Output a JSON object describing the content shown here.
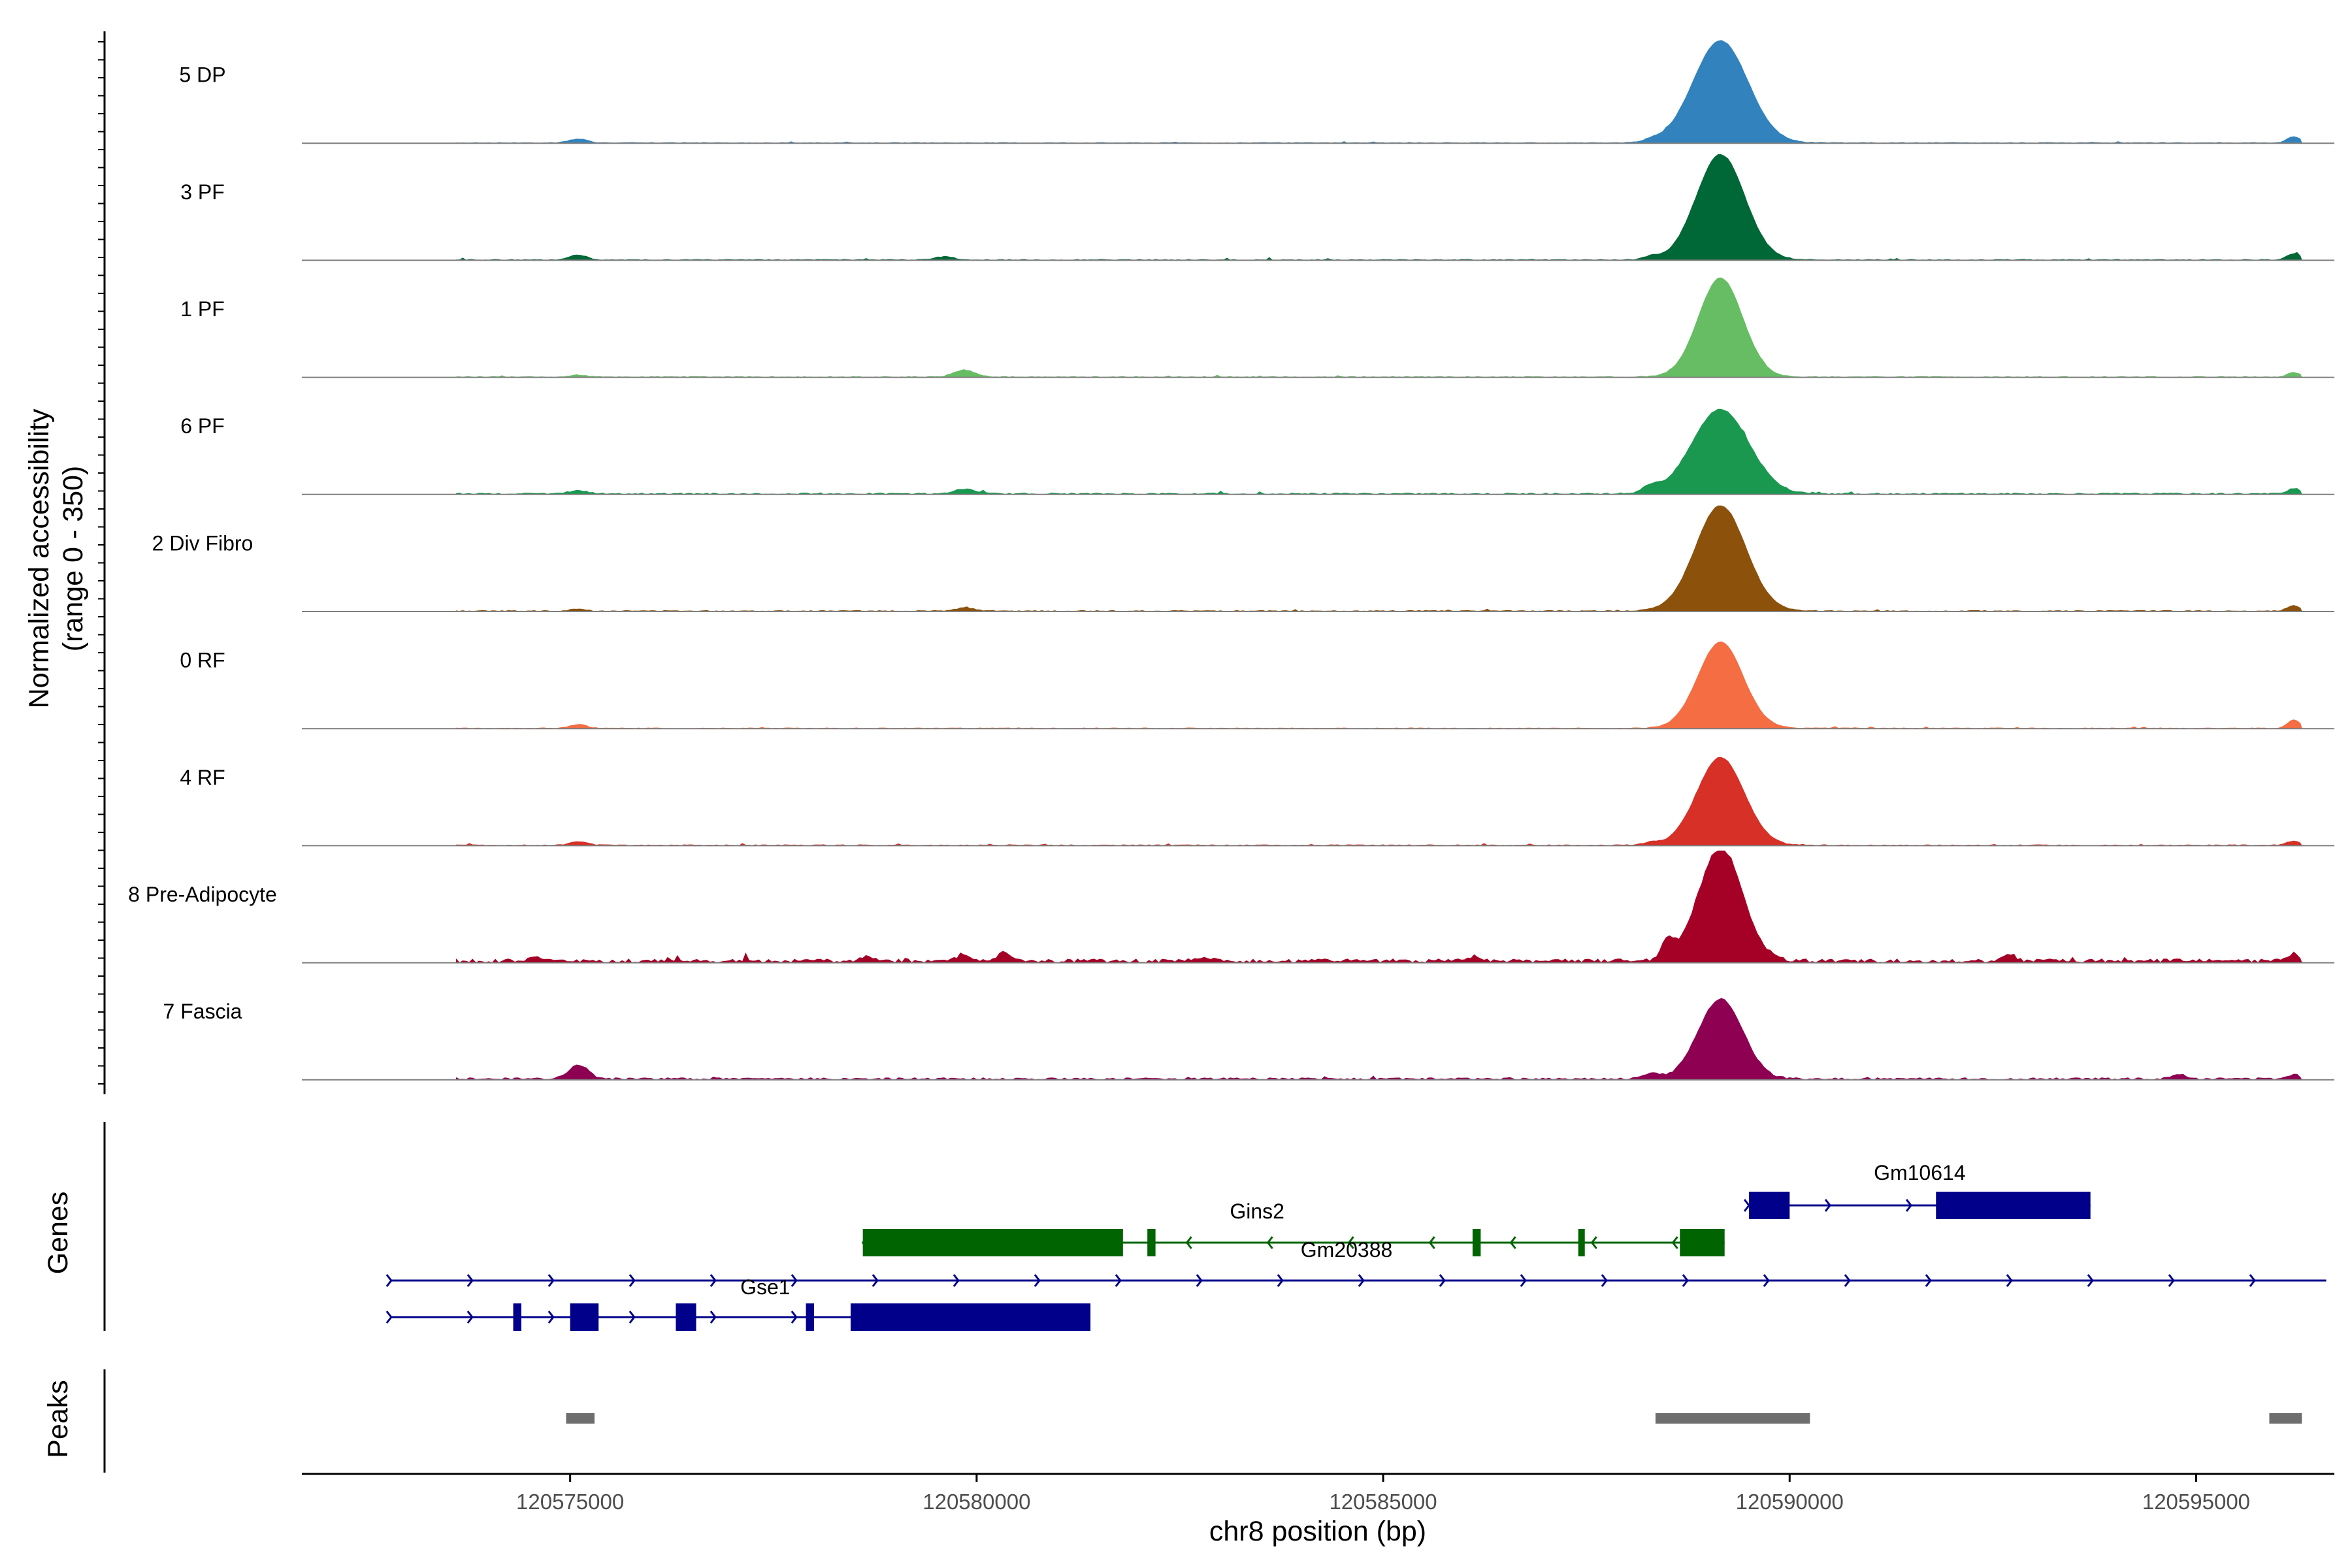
{
  "chart_data": {
    "type": "area",
    "title": "",
    "region": {
      "chromosome": "chr8",
      "start": 120571700,
      "end": 120596700
    },
    "ylabel": "Normalized accessibility",
    "ylabel_range": "(range 0 - 350)",
    "ylim": [
      0,
      350
    ],
    "xlabel": "chr8 position (bp)",
    "x_ticks": [
      {
        "value": 120575000,
        "label": "120575000"
      },
      {
        "value": 120580000,
        "label": "120580000"
      },
      {
        "value": 120585000,
        "label": "120585000"
      },
      {
        "value": 120590000,
        "label": "120590000"
      },
      {
        "value": 120595000,
        "label": "120595000"
      }
    ],
    "series": [
      {
        "name": "5 DP",
        "color": "#3182bd",
        "peaks": [
          [
            120589150,
            320,
            520
          ],
          [
            120575100,
            12,
            180
          ],
          [
            120588300,
            6,
            150
          ],
          [
            120596200,
            20,
            120
          ]
        ],
        "noise": 0.8
      },
      {
        "name": "3 PF",
        "color": "#006837",
        "peaks": [
          [
            120589150,
            330,
            460
          ],
          [
            120575100,
            16,
            160
          ],
          [
            120579600,
            10,
            180
          ],
          [
            120588300,
            10,
            150
          ],
          [
            120596200,
            20,
            120
          ]
        ],
        "noise": 1.0
      },
      {
        "name": "1 PF",
        "color": "#66bd63",
        "peaks": [
          [
            120589150,
            310,
            420
          ],
          [
            120579850,
            22,
            200
          ],
          [
            120575100,
            6,
            150
          ],
          [
            120596200,
            14,
            120
          ]
        ],
        "noise": 0.9
      },
      {
        "name": "6 PF",
        "color": "#1a9850",
        "peaks": [
          [
            120589150,
            265,
            540
          ],
          [
            120575100,
            10,
            180
          ],
          [
            120579850,
            14,
            200
          ],
          [
            120588300,
            20,
            160
          ],
          [
            120596200,
            18,
            120
          ]
        ],
        "noise": 1.5
      },
      {
        "name": "2 Div Fibro",
        "color": "#8c510a",
        "peaks": [
          [
            120589150,
            330,
            480
          ],
          [
            120579850,
            10,
            180
          ],
          [
            120575100,
            6,
            150
          ],
          [
            120596200,
            18,
            120
          ]
        ],
        "noise": 1.1
      },
      {
        "name": "0 RF",
        "color": "#f46d43",
        "peaks": [
          [
            120589150,
            270,
            430
          ],
          [
            120575100,
            12,
            150
          ],
          [
            120596200,
            26,
            120
          ]
        ],
        "noise": 0.8
      },
      {
        "name": "4 RF",
        "color": "#d73027",
        "peaks": [
          [
            120589150,
            275,
            450
          ],
          [
            120575100,
            12,
            160
          ],
          [
            120588300,
            8,
            150
          ],
          [
            120596200,
            14,
            120
          ]
        ],
        "noise": 1.0
      },
      {
        "name": "8 Pre-Adipocyte",
        "color": "#a50026",
        "peaks": [
          [
            120589150,
            355,
            420
          ],
          [
            120588500,
            55,
            120
          ],
          [
            120579850,
            20,
            130
          ],
          [
            120580350,
            26,
            130
          ],
          [
            120578650,
            14,
            120
          ],
          [
            120582800,
            14,
            140
          ],
          [
            120586100,
            14,
            130
          ],
          [
            120592700,
            22,
            120
          ],
          [
            120596200,
            25,
            100
          ],
          [
            120574600,
            14,
            120
          ]
        ],
        "noise": 4.0
      },
      {
        "name": "7 Fascia",
        "color": "#8e0152",
        "peaks": [
          [
            120589150,
            250,
            420
          ],
          [
            120575100,
            45,
            180
          ],
          [
            120588300,
            14,
            160
          ],
          [
            120594800,
            14,
            140
          ],
          [
            120596200,
            14,
            120
          ]
        ],
        "noise": 2.2
      }
    ],
    "genes_track_label": "Genes",
    "genes": [
      {
        "name": "Gm10614",
        "strand": "+",
        "color": "#00008b",
        "start": 120589500,
        "end": 120593700,
        "exons": [
          [
            120589500,
            120590000
          ],
          [
            120591800,
            120593700
          ]
        ],
        "row": 0
      },
      {
        "name": "Gins2",
        "strand": "-",
        "color": "#006400",
        "start": 120578600,
        "end": 120589200,
        "exons": [
          [
            120578600,
            120581800
          ],
          [
            120582100,
            120582200
          ],
          [
            120586100,
            120586200
          ],
          [
            120587400,
            120587480
          ],
          [
            120588650,
            120589200
          ]
        ],
        "row": 1
      },
      {
        "name": "Gm20388",
        "strand": "+",
        "color": "#00008b",
        "start": 120572800,
        "end": 120596600,
        "exons": [],
        "row": 2
      },
      {
        "name": "Gse1",
        "strand": "+",
        "color": "#00008b",
        "start": 120572800,
        "end": 120581400,
        "exons": [
          [
            120574300,
            120574400
          ],
          [
            120575000,
            120575350
          ],
          [
            120576300,
            120576550
          ],
          [
            120577900,
            120578000
          ],
          [
            120578450,
            120581400
          ]
        ],
        "row": 3
      }
    ],
    "peaks_track_label": "Peaks",
    "peak_regions": [
      [
        120574950,
        120575300
      ],
      [
        120588350,
        120590250
      ],
      [
        120595900,
        120596300
      ]
    ],
    "peak_color": "#6e6e6e"
  }
}
